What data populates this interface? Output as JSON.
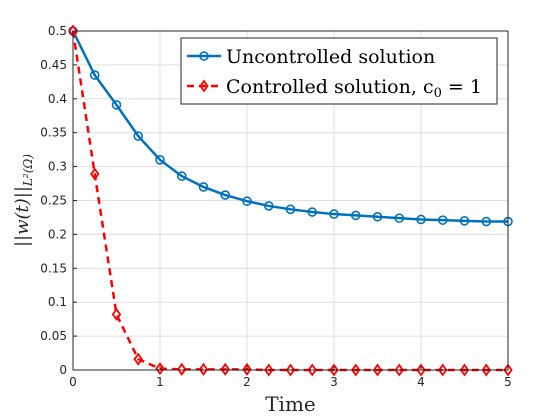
{
  "chart_data": {
    "type": "line",
    "title": "",
    "xlabel": "Time",
    "ylabel": "||w(t)||",
    "ylabel_sub": "L²(Ω)",
    "xlim": [
      0,
      5
    ],
    "ylim": [
      0,
      0.5
    ],
    "xticks": [
      0,
      1,
      2,
      3,
      4,
      5
    ],
    "yticks": [
      0,
      0.05,
      0.1,
      0.15,
      0.2,
      0.25,
      0.3,
      0.35,
      0.4,
      0.45,
      0.5
    ],
    "grid": true,
    "legend_position": "top-right",
    "x": [
      0,
      0.25,
      0.5,
      0.75,
      1,
      1.25,
      1.5,
      1.75,
      2,
      2.25,
      2.5,
      2.75,
      3,
      3.25,
      3.5,
      3.75,
      4,
      4.25,
      4.5,
      4.75,
      5
    ],
    "series": [
      {
        "name": "Uncontrolled solution",
        "color": "#0072BD",
        "marker": "circle",
        "line_style": "solid",
        "values": [
          0.5,
          0.435,
          0.391,
          0.345,
          0.31,
          0.286,
          0.27,
          0.258,
          0.249,
          0.242,
          0.237,
          0.233,
          0.23,
          0.228,
          0.226,
          0.224,
          0.222,
          0.221,
          0.22,
          0.219,
          0.219
        ]
      },
      {
        "name": "Controlled solution, c",
        "name_sub": "0",
        "name_suffix": " = 1",
        "color": "#FF0000",
        "marker": "diamond",
        "line_style": "dashed",
        "values": [
          0.5,
          0.289,
          0.082,
          0.016,
          0.002,
          0.001,
          0.001,
          0.001,
          0.001,
          0.0,
          0.0,
          0.0,
          0.0,
          0.0,
          0.0,
          0.0,
          0.0,
          0.0,
          0.0,
          0.0,
          0.0
        ]
      }
    ]
  }
}
